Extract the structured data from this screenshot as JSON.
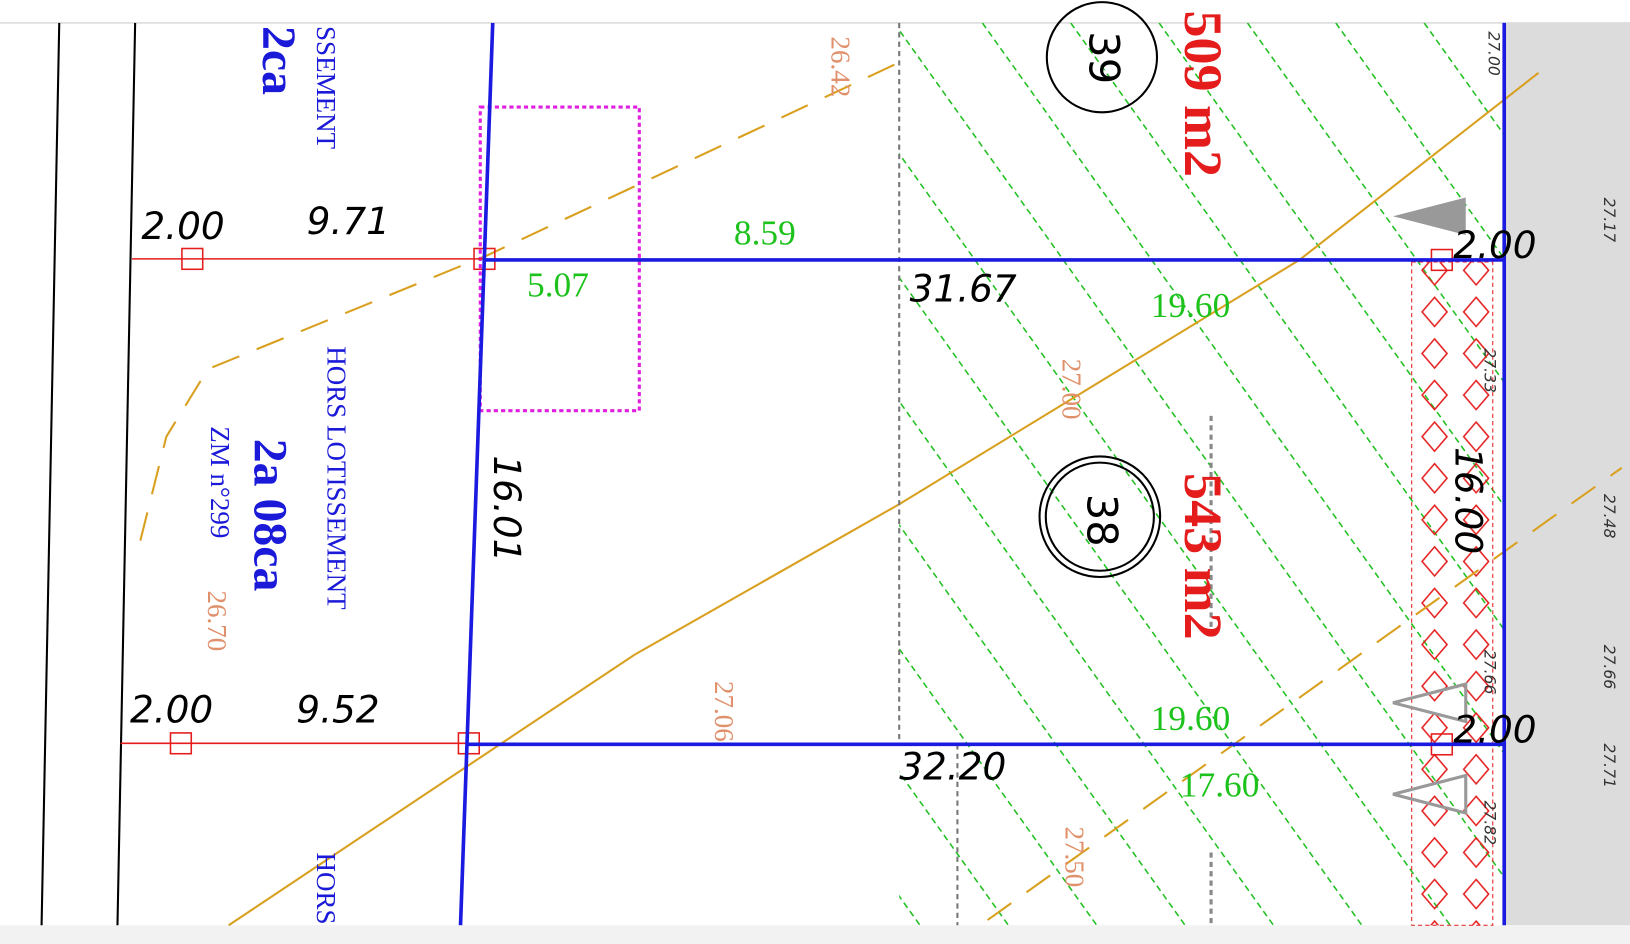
{
  "dimensions": [
    "2.00",
    "9.71",
    "8.59",
    "5.07",
    "31.67",
    "19.60",
    "2.00",
    "16.01",
    "16.00",
    "2.00",
    "9.52",
    "19.60",
    "2.00",
    "32.20",
    "17.60"
  ],
  "lots": [
    {
      "number": "39",
      "area": "509 m2"
    },
    {
      "number": "38",
      "area": "543 m2"
    }
  ],
  "parcels": [
    {
      "status": "HORS LOTISSEMENT",
      "area": "2a 08ca",
      "reference": "ZM n°299"
    },
    {
      "status": "SSEMENT",
      "area": "2ca"
    },
    {
      "status": "HORS"
    }
  ],
  "elevations": [
    "26.42",
    "27.00",
    "27.06",
    "27.50",
    "26.70",
    "27.00",
    "27.33",
    "27.66",
    "27.82",
    "27.17",
    "27.48",
    "27.66",
    "27.71"
  ]
}
